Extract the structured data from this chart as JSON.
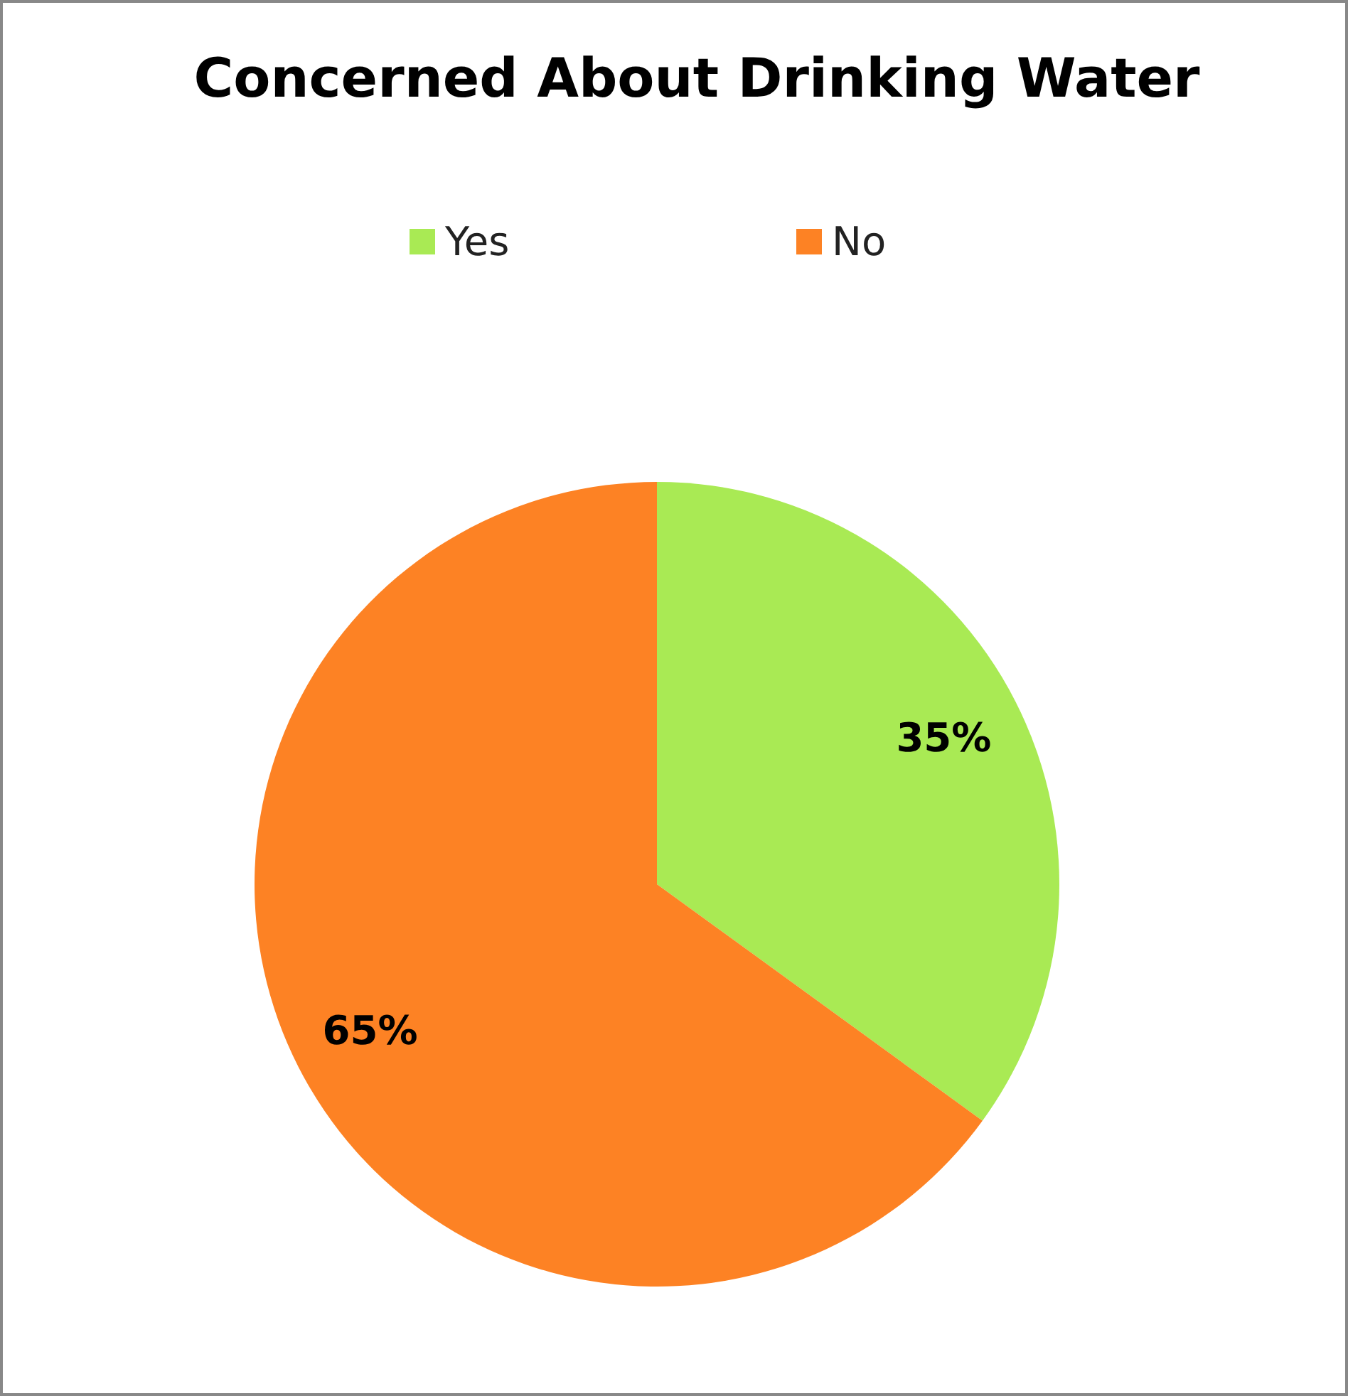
{
  "chart_data": {
    "type": "pie",
    "title": "Concerned About Drinking Water",
    "categories": [
      "Yes",
      "No"
    ],
    "values": [
      35,
      65
    ],
    "colors": [
      "#a9ea54",
      "#fd8224"
    ],
    "value_labels": [
      "35%",
      "65%"
    ],
    "legend": "top"
  }
}
